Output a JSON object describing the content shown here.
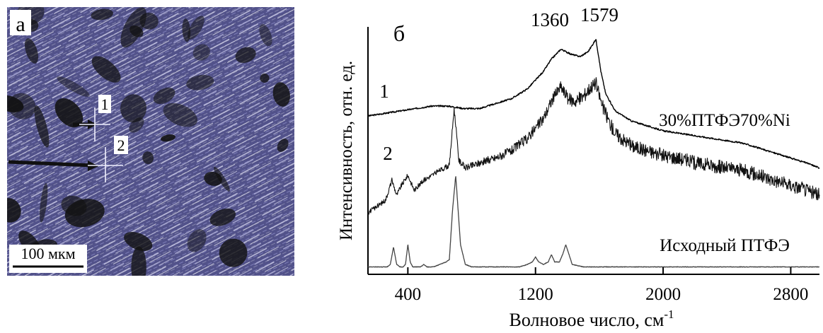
{
  "panel_a": {
    "label": "а",
    "point_labels": [
      "1",
      "2"
    ],
    "scale_bar_label": "100 мкм",
    "colors": {
      "background": "#24243f",
      "crystal": "#7878c8",
      "crystal_light": "#d6d6f0",
      "dark_patch": "#121212"
    }
  },
  "panel_b": {
    "label": "б",
    "peak_labels": [
      "1360",
      "1579"
    ],
    "curve_labels": [
      "1",
      "2"
    ],
    "sample_label": "30%ПТФЭ70%Ni",
    "reference_label": "Исходный ПТФЭ",
    "ylabel": "Интенсивность, отн. ед.",
    "xlabel_text": "Волновое число, см",
    "xlabel_exponent": "-1"
  },
  "chart_data": {
    "type": "line",
    "xlabel": "Волновое число, см-1",
    "ylabel": "Интенсивность, отн. ед.",
    "xlim": [
      150,
      2980
    ],
    "x_ticks": [
      400,
      1200,
      2000,
      2800
    ],
    "ylim": [
      0,
      1
    ],
    "grid": false,
    "annotations": [
      {
        "text": "1360",
        "x": 1360
      },
      {
        "text": "1579",
        "x": 1579
      }
    ],
    "series": [
      {
        "name": "1",
        "x": [
          150,
          250,
          350,
          450,
          550,
          650,
          750,
          850,
          950,
          1050,
          1150,
          1250,
          1300,
          1360,
          1420,
          1480,
          1530,
          1579,
          1610,
          1640,
          1700,
          1800,
          1900,
          2000,
          2100,
          2200,
          2300,
          2400,
          2500,
          2600,
          2700,
          2800,
          2900,
          2980
        ],
        "y": [
          0.64,
          0.65,
          0.66,
          0.67,
          0.68,
          0.68,
          0.67,
          0.67,
          0.69,
          0.71,
          0.75,
          0.82,
          0.87,
          0.91,
          0.89,
          0.88,
          0.9,
          0.95,
          0.82,
          0.73,
          0.66,
          0.62,
          0.6,
          0.58,
          0.57,
          0.56,
          0.55,
          0.54,
          0.53,
          0.51,
          0.49,
          0.47,
          0.45,
          0.43
        ]
      },
      {
        "name": "2",
        "x": [
          150,
          220,
          260,
          300,
          330,
          360,
          400,
          440,
          500,
          600,
          660,
          690,
          720,
          760,
          850,
          950,
          1050,
          1150,
          1250,
          1300,
          1360,
          1400,
          1450,
          1500,
          1550,
          1579,
          1620,
          1660,
          1700,
          1800,
          1900,
          2000,
          2100,
          2200,
          2300,
          2400,
          2500,
          2600,
          2700,
          2800,
          2900,
          2980
        ],
        "y": [
          0.25,
          0.28,
          0.3,
          0.38,
          0.32,
          0.36,
          0.4,
          0.34,
          0.38,
          0.42,
          0.44,
          0.67,
          0.46,
          0.43,
          0.45,
          0.47,
          0.5,
          0.55,
          0.63,
          0.7,
          0.76,
          0.71,
          0.7,
          0.72,
          0.76,
          0.77,
          0.68,
          0.62,
          0.57,
          0.52,
          0.5,
          0.48,
          0.47,
          0.45,
          0.44,
          0.43,
          0.42,
          0.4,
          0.38,
          0.36,
          0.34,
          0.32
        ]
      },
      {
        "name": "Исходный ПТФЭ",
        "x": [
          150,
          270,
          290,
          310,
          330,
          350,
          370,
          385,
          400,
          415,
          430,
          450,
          480,
          500,
          520,
          540,
          560,
          600,
          640,
          660,
          680,
          700,
          730,
          760,
          800,
          900,
          1000,
          1100,
          1150,
          1180,
          1200,
          1220,
          1250,
          1280,
          1300,
          1320,
          1350,
          1370,
          1390,
          1410,
          1430,
          1500,
          1600,
          1800,
          2000,
          2200,
          2400,
          2600,
          2800,
          2980
        ],
        "y": [
          0.03,
          0.03,
          0.04,
          0.11,
          0.04,
          0.03,
          0.03,
          0.04,
          0.12,
          0.05,
          0.03,
          0.03,
          0.03,
          0.04,
          0.03,
          0.03,
          0.03,
          0.04,
          0.05,
          0.06,
          0.26,
          0.4,
          0.12,
          0.04,
          0.03,
          0.03,
          0.03,
          0.03,
          0.04,
          0.05,
          0.07,
          0.05,
          0.04,
          0.05,
          0.08,
          0.05,
          0.05,
          0.08,
          0.12,
          0.08,
          0.04,
          0.03,
          0.03,
          0.03,
          0.03,
          0.03,
          0.03,
          0.03,
          0.03,
          0.03
        ]
      }
    ]
  }
}
